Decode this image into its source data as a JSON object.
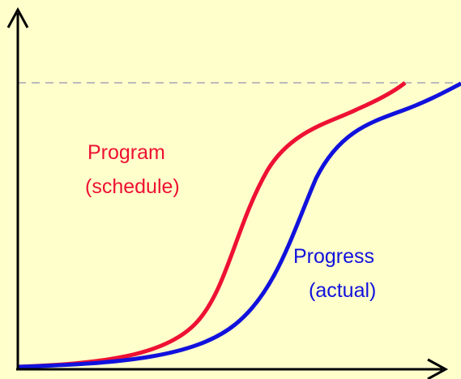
{
  "labels": {
    "program": {
      "line1": "Program",
      "line2": "(schedule)"
    },
    "progress": {
      "line1": "Progress",
      "line2": "(actual)"
    }
  }
}
